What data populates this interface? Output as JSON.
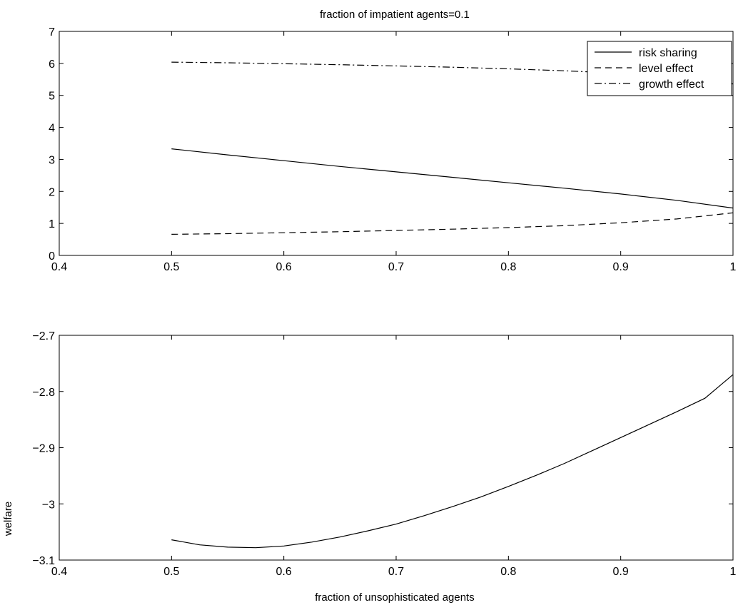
{
  "chart_data": [
    {
      "type": "line",
      "title": "fraction of impatient agents=0.1",
      "xlabel": "",
      "ylabel": "",
      "xlim": [
        0.4,
        1
      ],
      "ylim": [
        0,
        7
      ],
      "xticks": [
        "0.4",
        "0.5",
        "0.6",
        "0.7",
        "0.8",
        "0.9",
        "1"
      ],
      "yticks": [
        "0",
        "1",
        "2",
        "3",
        "4",
        "5",
        "6",
        "7"
      ],
      "grid": false,
      "legend": "top-right",
      "series": [
        {
          "name": "risk sharing",
          "style": "solid",
          "x": [
            0.5,
            0.55,
            0.6,
            0.65,
            0.7,
            0.75,
            0.8,
            0.85,
            0.9,
            0.95,
            1.0
          ],
          "y": [
            3.33,
            3.14,
            2.96,
            2.78,
            2.61,
            2.44,
            2.27,
            2.1,
            1.92,
            1.72,
            1.48
          ]
        },
        {
          "name": "level effect",
          "style": "dashed",
          "x": [
            0.5,
            0.55,
            0.6,
            0.65,
            0.7,
            0.75,
            0.8,
            0.85,
            0.9,
            0.95,
            1.0
          ],
          "y": [
            0.66,
            0.68,
            0.71,
            0.74,
            0.78,
            0.82,
            0.87,
            0.93,
            1.02,
            1.14,
            1.33
          ]
        },
        {
          "name": "growth effect",
          "style": "dashdot",
          "x": [
            0.5,
            0.55,
            0.6,
            0.65,
            0.7,
            0.75,
            0.8,
            0.85,
            0.9,
            0.95,
            1.0
          ],
          "y": [
            6.04,
            6.02,
            5.99,
            5.96,
            5.92,
            5.88,
            5.83,
            5.77,
            5.69,
            5.58,
            5.36
          ]
        }
      ]
    },
    {
      "type": "line",
      "title": "",
      "xlabel": "fraction of unsophisticated agents",
      "ylabel": "welfare",
      "xlim": [
        0.4,
        1
      ],
      "ylim": [
        -3.1,
        -2.7
      ],
      "xticks": [
        "0.4",
        "0.5",
        "0.6",
        "0.7",
        "0.8",
        "0.9",
        "1"
      ],
      "yticks": [
        "−3.1",
        "−3",
        "−2.9",
        "−2.8",
        "−2.7"
      ],
      "grid": false,
      "series": [
        {
          "style": "solid",
          "x": [
            0.5,
            0.525,
            0.55,
            0.575,
            0.6,
            0.625,
            0.65,
            0.675,
            0.7,
            0.725,
            0.75,
            0.775,
            0.8,
            0.825,
            0.85,
            0.875,
            0.9,
            0.925,
            0.95,
            0.975,
            1.0
          ],
          "y": [
            -3.064,
            -3.073,
            -3.077,
            -3.078,
            -3.075,
            -3.068,
            -3.059,
            -3.048,
            -3.036,
            -3.021,
            -3.005,
            -2.988,
            -2.969,
            -2.949,
            -2.928,
            -2.905,
            -2.882,
            -2.859,
            -2.836,
            -2.812,
            -2.77
          ]
        }
      ]
    }
  ]
}
